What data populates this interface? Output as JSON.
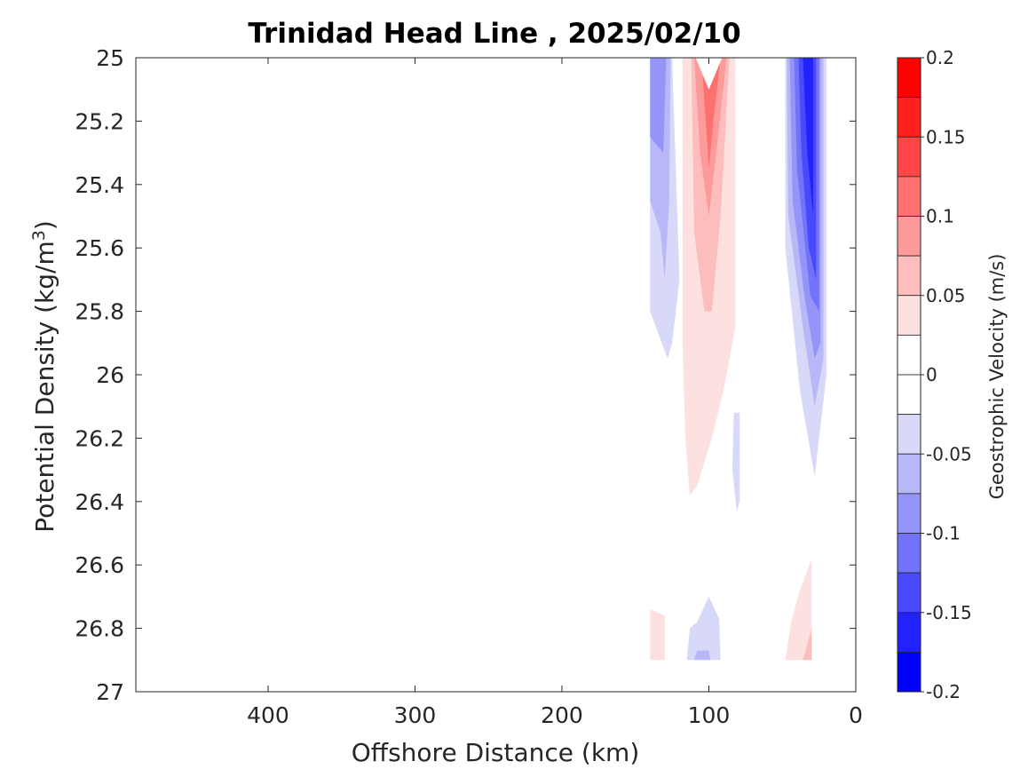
{
  "chart_data": {
    "type": "heatmap",
    "title": "Trinidad Head Line , 2025/02/10",
    "xlabel": "Offshore Distance (km)",
    "ylabel_main": "Potential Density (kg/m",
    "ylabel_sup": "3",
    "ylabel_close": ")",
    "colorbar_label": "Geostrophic Velocity (m/s)",
    "xlim": [
      490,
      0
    ],
    "ylim": [
      25,
      27
    ],
    "x_reversed": true,
    "y_reversed": true,
    "x_ticks": [
      400,
      300,
      200,
      100,
      0
    ],
    "x_tick_labels": [
      "400",
      "300",
      "200",
      "100",
      "0"
    ],
    "y_ticks": [
      25,
      25.2,
      25.4,
      25.6,
      25.8,
      26,
      26.2,
      26.4,
      26.6,
      26.8,
      27
    ],
    "y_tick_labels": [
      "25",
      "25.2",
      "25.4",
      "25.6",
      "25.8",
      "26",
      "26.2",
      "26.4",
      "26.6",
      "26.8",
      "27"
    ],
    "colorbar": {
      "min": -0.2,
      "max": 0.2,
      "step": 0.025,
      "ticks": [
        0.2,
        0.15,
        0.1,
        0.05,
        0,
        -0.05,
        -0.1,
        -0.15,
        -0.2
      ],
      "tick_labels": [
        "0.2",
        "0.15",
        "0.1",
        "0.05",
        "0",
        "-0.05",
        "-0.1",
        "-0.15",
        "-0.2"
      ],
      "colors_top_to_bottom": [
        "#ff0000",
        "#ff2020",
        "#ff4545",
        "#ff7070",
        "#fd9a9a",
        "#fdbdbd",
        "#fde0e0",
        "#ffffff",
        "#ffffff",
        "#d8d8f8",
        "#b8b8f8",
        "#9595f9",
        "#7272fb",
        "#4a4afd",
        "#2222fe",
        "#0000ff"
      ]
    },
    "regions": [
      {
        "level": -0.05,
        "color": "#d8d8f8",
        "points": [
          [
            140,
            25
          ],
          [
            125,
            25
          ],
          [
            120,
            25.7
          ],
          [
            125,
            25.9
          ],
          [
            128,
            25.95
          ],
          [
            140,
            25.8
          ]
        ]
      },
      {
        "level": -0.075,
        "color": "#b8b8f8",
        "points": [
          [
            140,
            25
          ],
          [
            126,
            25
          ],
          [
            127,
            25.45
          ],
          [
            130,
            25.7
          ],
          [
            133,
            25.55
          ],
          [
            140,
            25.45
          ]
        ]
      },
      {
        "level": -0.1,
        "color": "#9595f9",
        "points": [
          [
            140,
            25
          ],
          [
            129,
            25
          ],
          [
            131,
            25.3
          ],
          [
            140,
            25.25
          ]
        ]
      },
      {
        "level": -0.05,
        "color": "#d8d8f8",
        "points": [
          [
            48,
            25
          ],
          [
            20,
            25
          ],
          [
            20,
            26
          ],
          [
            28,
            26.32
          ],
          [
            38,
            26.05
          ],
          [
            48,
            25.6
          ]
        ]
      },
      {
        "level": -0.075,
        "color": "#b8b8f8",
        "points": [
          [
            47,
            25
          ],
          [
            22,
            25
          ],
          [
            22,
            25.95
          ],
          [
            28,
            26.1
          ],
          [
            36,
            25.85
          ],
          [
            46,
            25.5
          ]
        ]
      },
      {
        "level": -0.1,
        "color": "#9595f9",
        "points": [
          [
            45,
            25
          ],
          [
            24,
            25
          ],
          [
            24,
            25.9
          ],
          [
            28,
            25.95
          ],
          [
            35,
            25.75
          ],
          [
            43,
            25.45
          ]
        ]
      },
      {
        "level": -0.125,
        "color": "#7272fb",
        "points": [
          [
            42,
            25
          ],
          [
            25,
            25
          ],
          [
            25,
            25.8
          ],
          [
            31,
            25.75
          ],
          [
            40,
            25.35
          ]
        ]
      },
      {
        "level": -0.15,
        "color": "#4a4afd",
        "points": [
          [
            39,
            25
          ],
          [
            27,
            25
          ],
          [
            27,
            25.7
          ],
          [
            32,
            25.6
          ],
          [
            37,
            25.3
          ]
        ]
      },
      {
        "level": -0.175,
        "color": "#2222fe",
        "points": [
          [
            36,
            25
          ],
          [
            29,
            25
          ],
          [
            29,
            25.5
          ],
          [
            33,
            25.3
          ]
        ]
      },
      {
        "level": -0.05,
        "color": "#d8d8f8",
        "points": [
          [
            83,
            26.12
          ],
          [
            79,
            26.12
          ],
          [
            79,
            26.4
          ],
          [
            81,
            26.43
          ],
          [
            84,
            26.3
          ]
        ]
      },
      {
        "level": -0.05,
        "color": "#d8d8f8",
        "points": [
          [
            115,
            26.9
          ],
          [
            92,
            26.9
          ],
          [
            93,
            26.77
          ],
          [
            100,
            26.7
          ],
          [
            108,
            26.78
          ],
          [
            113,
            26.8
          ]
        ]
      },
      {
        "level": -0.075,
        "color": "#b8b8f8",
        "points": [
          [
            110,
            26.9
          ],
          [
            99,
            26.9
          ],
          [
            100,
            26.87
          ],
          [
            108,
            26.87
          ]
        ]
      },
      {
        "level": 0.025,
        "color": "#fde0e0",
        "points": [
          [
            118,
            25
          ],
          [
            82,
            25
          ],
          [
            82,
            25.85
          ],
          [
            90,
            26.05
          ],
          [
            98,
            26.2
          ],
          [
            108,
            26.35
          ],
          [
            113,
            26.38
          ],
          [
            116,
            26.2
          ],
          [
            118,
            25.9
          ]
        ]
      },
      {
        "level": 0.05,
        "color": "#fdbdbd",
        "points": [
          [
            112,
            25
          ],
          [
            86,
            25
          ],
          [
            92,
            25.5
          ],
          [
            98,
            25.8
          ],
          [
            103,
            25.8
          ],
          [
            110,
            25.55
          ]
        ]
      },
      {
        "level": 0.075,
        "color": "#fd9a9a",
        "points": [
          [
            110,
            25
          ],
          [
            88,
            25
          ],
          [
            95,
            25.3
          ],
          [
            100,
            25.5
          ],
          [
            106,
            25.3
          ]
        ]
      },
      {
        "level": 0.1,
        "color": "#ff7070",
        "points": [
          [
            105,
            25
          ],
          [
            92,
            25
          ],
          [
            97,
            25.2
          ],
          [
            100,
            25.35
          ]
        ]
      },
      {
        "level": 0.025,
        "color": "#fde0e0",
        "points": [
          [
            140,
            26.74
          ],
          [
            130,
            26.76
          ],
          [
            130,
            26.9
          ],
          [
            140,
            26.9
          ]
        ]
      },
      {
        "level": 0.025,
        "color": "#fde0e0",
        "points": [
          [
            48,
            26.9
          ],
          [
            30,
            26.9
          ],
          [
            30,
            26.58
          ],
          [
            38,
            26.68
          ],
          [
            44,
            26.78
          ]
        ]
      },
      {
        "level": 0.05,
        "color": "#fdbdbd",
        "points": [
          [
            36,
            26.9
          ],
          [
            30,
            26.9
          ],
          [
            30,
            26.8
          ]
        ]
      }
    ],
    "notch": {
      "color": "#ffffff",
      "points": [
        [
          109,
          25
        ],
        [
          91,
          25
        ],
        [
          100,
          25.1
        ]
      ]
    }
  }
}
